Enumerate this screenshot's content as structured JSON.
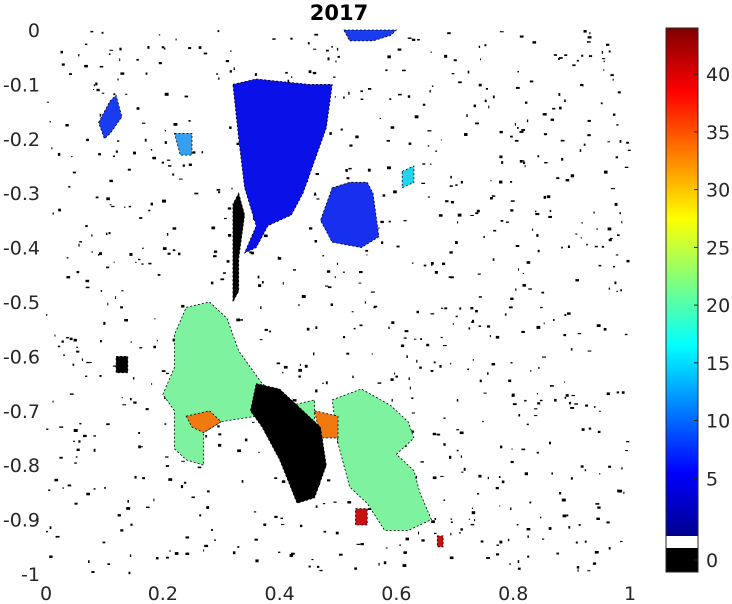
{
  "chart_data": {
    "type": "heatmap",
    "title": "2017",
    "xlabel": "",
    "ylabel": "",
    "xlim": [
      0,
      1
    ],
    "ylim": [
      -1,
      0
    ],
    "x_ticks": [
      "0",
      "0.2",
      "0.4",
      "0.6",
      "0.8",
      "1"
    ],
    "y_ticks": [
      "0",
      "-0.1",
      "-0.2",
      "-0.3",
      "-0.4",
      "-0.5",
      "-0.6",
      "-0.7",
      "-0.8",
      "-0.9",
      "-1"
    ],
    "colorbar": {
      "colormap": "jet",
      "range": [
        0,
        44
      ],
      "ticks": [
        "0",
        "5",
        "10",
        "15",
        "20",
        "25",
        "30",
        "35",
        "40"
      ],
      "special_bins": [
        {
          "value": 0,
          "color": "#000000"
        },
        {
          "value": 1,
          "color": "#ffffff"
        }
      ]
    },
    "regions": [
      {
        "name": "upper-left-blue-patch",
        "value": 3,
        "color": "#1a3cf0",
        "polygon": [
          [
            0.09,
            -0.17
          ],
          [
            0.11,
            -0.13
          ],
          [
            0.12,
            -0.12
          ],
          [
            0.13,
            -0.16
          ],
          [
            0.11,
            -0.19
          ],
          [
            0.1,
            -0.2
          ]
        ]
      },
      {
        "name": "upper-central-blue-region",
        "value": 2,
        "color": "#0a10e8",
        "polygon": [
          [
            0.32,
            -0.1
          ],
          [
            0.36,
            -0.09
          ],
          [
            0.45,
            -0.1
          ],
          [
            0.49,
            -0.1
          ],
          [
            0.48,
            -0.18
          ],
          [
            0.46,
            -0.24
          ],
          [
            0.44,
            -0.3
          ],
          [
            0.42,
            -0.34
          ],
          [
            0.38,
            -0.36
          ],
          [
            0.36,
            -0.4
          ],
          [
            0.34,
            -0.41
          ],
          [
            0.36,
            -0.36
          ],
          [
            0.34,
            -0.29
          ],
          [
            0.33,
            -0.2
          ]
        ]
      },
      {
        "name": "upper-central-blue-lobe",
        "value": 3,
        "color": "#1730f0",
        "polygon": [
          [
            0.49,
            -0.29
          ],
          [
            0.52,
            -0.28
          ],
          [
            0.55,
            -0.28
          ],
          [
            0.56,
            -0.3
          ],
          [
            0.57,
            -0.38
          ],
          [
            0.54,
            -0.4
          ],
          [
            0.49,
            -0.39
          ],
          [
            0.47,
            -0.35
          ]
        ]
      },
      {
        "name": "top-blue-strip",
        "value": 3,
        "color": "#1a3cf0",
        "polygon": [
          [
            0.51,
            -0.0
          ],
          [
            0.6,
            -0.0
          ],
          [
            0.59,
            -0.01
          ],
          [
            0.56,
            -0.02
          ],
          [
            0.52,
            -0.02
          ]
        ]
      },
      {
        "name": "cyan-patch-left",
        "value": 13,
        "color": "#35a0f0",
        "polygon": [
          [
            0.22,
            -0.19
          ],
          [
            0.25,
            -0.19
          ],
          [
            0.25,
            -0.23
          ],
          [
            0.23,
            -0.23
          ]
        ]
      },
      {
        "name": "cyan-patch-right",
        "value": 15,
        "color": "#22d4f0",
        "polygon": [
          [
            0.61,
            -0.26
          ],
          [
            0.63,
            -0.25
          ],
          [
            0.63,
            -0.28
          ],
          [
            0.61,
            -0.29
          ]
        ]
      },
      {
        "name": "lower-left-green-region",
        "value": 21,
        "color": "#7ff2a0",
        "polygon": [
          [
            0.24,
            -0.51
          ],
          [
            0.28,
            -0.5
          ],
          [
            0.31,
            -0.53
          ],
          [
            0.33,
            -0.59
          ],
          [
            0.35,
            -0.62
          ],
          [
            0.37,
            -0.65
          ],
          [
            0.42,
            -0.69
          ],
          [
            0.46,
            -0.68
          ],
          [
            0.46,
            -0.73
          ],
          [
            0.4,
            -0.75
          ],
          [
            0.36,
            -0.71
          ],
          [
            0.3,
            -0.72
          ],
          [
            0.27,
            -0.74
          ],
          [
            0.27,
            -0.8
          ],
          [
            0.24,
            -0.79
          ],
          [
            0.22,
            -0.77
          ],
          [
            0.22,
            -0.7
          ],
          [
            0.2,
            -0.67
          ],
          [
            0.22,
            -0.62
          ],
          [
            0.22,
            -0.56
          ]
        ]
      },
      {
        "name": "lower-right-green-region",
        "value": 21,
        "color": "#7ff2a0",
        "polygon": [
          [
            0.49,
            -0.68
          ],
          [
            0.54,
            -0.66
          ],
          [
            0.59,
            -0.69
          ],
          [
            0.62,
            -0.72
          ],
          [
            0.63,
            -0.75
          ],
          [
            0.6,
            -0.78
          ],
          [
            0.63,
            -0.81
          ],
          [
            0.64,
            -0.85
          ],
          [
            0.66,
            -0.9
          ],
          [
            0.62,
            -0.92
          ],
          [
            0.58,
            -0.92
          ],
          [
            0.55,
            -0.87
          ],
          [
            0.52,
            -0.84
          ],
          [
            0.5,
            -0.76
          ]
        ]
      },
      {
        "name": "orange-patch-left",
        "value": 33,
        "color": "#f07a10",
        "polygon": [
          [
            0.24,
            -0.71
          ],
          [
            0.28,
            -0.7
          ],
          [
            0.3,
            -0.72
          ],
          [
            0.27,
            -0.74
          ],
          [
            0.25,
            -0.73
          ]
        ]
      },
      {
        "name": "orange-patch-center",
        "value": 33,
        "color": "#f07a10",
        "polygon": [
          [
            0.46,
            -0.7
          ],
          [
            0.5,
            -0.71
          ],
          [
            0.5,
            -0.75
          ],
          [
            0.47,
            -0.75
          ]
        ]
      },
      {
        "name": "red-patch-right",
        "value": 42,
        "color": "#c81010",
        "polygon": [
          [
            0.53,
            -0.88
          ],
          [
            0.55,
            -0.88
          ],
          [
            0.55,
            -0.91
          ],
          [
            0.53,
            -0.91
          ]
        ]
      },
      {
        "name": "red-patch-bottom",
        "value": 42,
        "color": "#c81010",
        "polygon": [
          [
            0.67,
            -0.93
          ],
          [
            0.68,
            -0.93
          ],
          [
            0.68,
            -0.95
          ],
          [
            0.67,
            -0.95
          ]
        ]
      },
      {
        "name": "black-streak-upper",
        "value": 0,
        "color": "#000000",
        "polygon": [
          [
            0.33,
            -0.3
          ],
          [
            0.34,
            -0.34
          ],
          [
            0.33,
            -0.42
          ],
          [
            0.33,
            -0.48
          ],
          [
            0.32,
            -0.5
          ],
          [
            0.32,
            -0.45
          ],
          [
            0.32,
            -0.38
          ],
          [
            0.32,
            -0.32
          ]
        ]
      },
      {
        "name": "black-streak-center",
        "value": 0,
        "color": "#000000",
        "polygon": [
          [
            0.36,
            -0.65
          ],
          [
            0.4,
            -0.66
          ],
          [
            0.44,
            -0.7
          ],
          [
            0.47,
            -0.73
          ],
          [
            0.48,
            -0.8
          ],
          [
            0.46,
            -0.86
          ],
          [
            0.43,
            -0.87
          ],
          [
            0.4,
            -0.79
          ],
          [
            0.37,
            -0.73
          ],
          [
            0.35,
            -0.7
          ]
        ]
      },
      {
        "name": "black-blob-left",
        "value": 0,
        "color": "#000000",
        "polygon": [
          [
            0.12,
            -0.6
          ],
          [
            0.14,
            -0.6
          ],
          [
            0.14,
            -0.63
          ],
          [
            0.12,
            -0.63
          ]
        ]
      }
    ]
  }
}
